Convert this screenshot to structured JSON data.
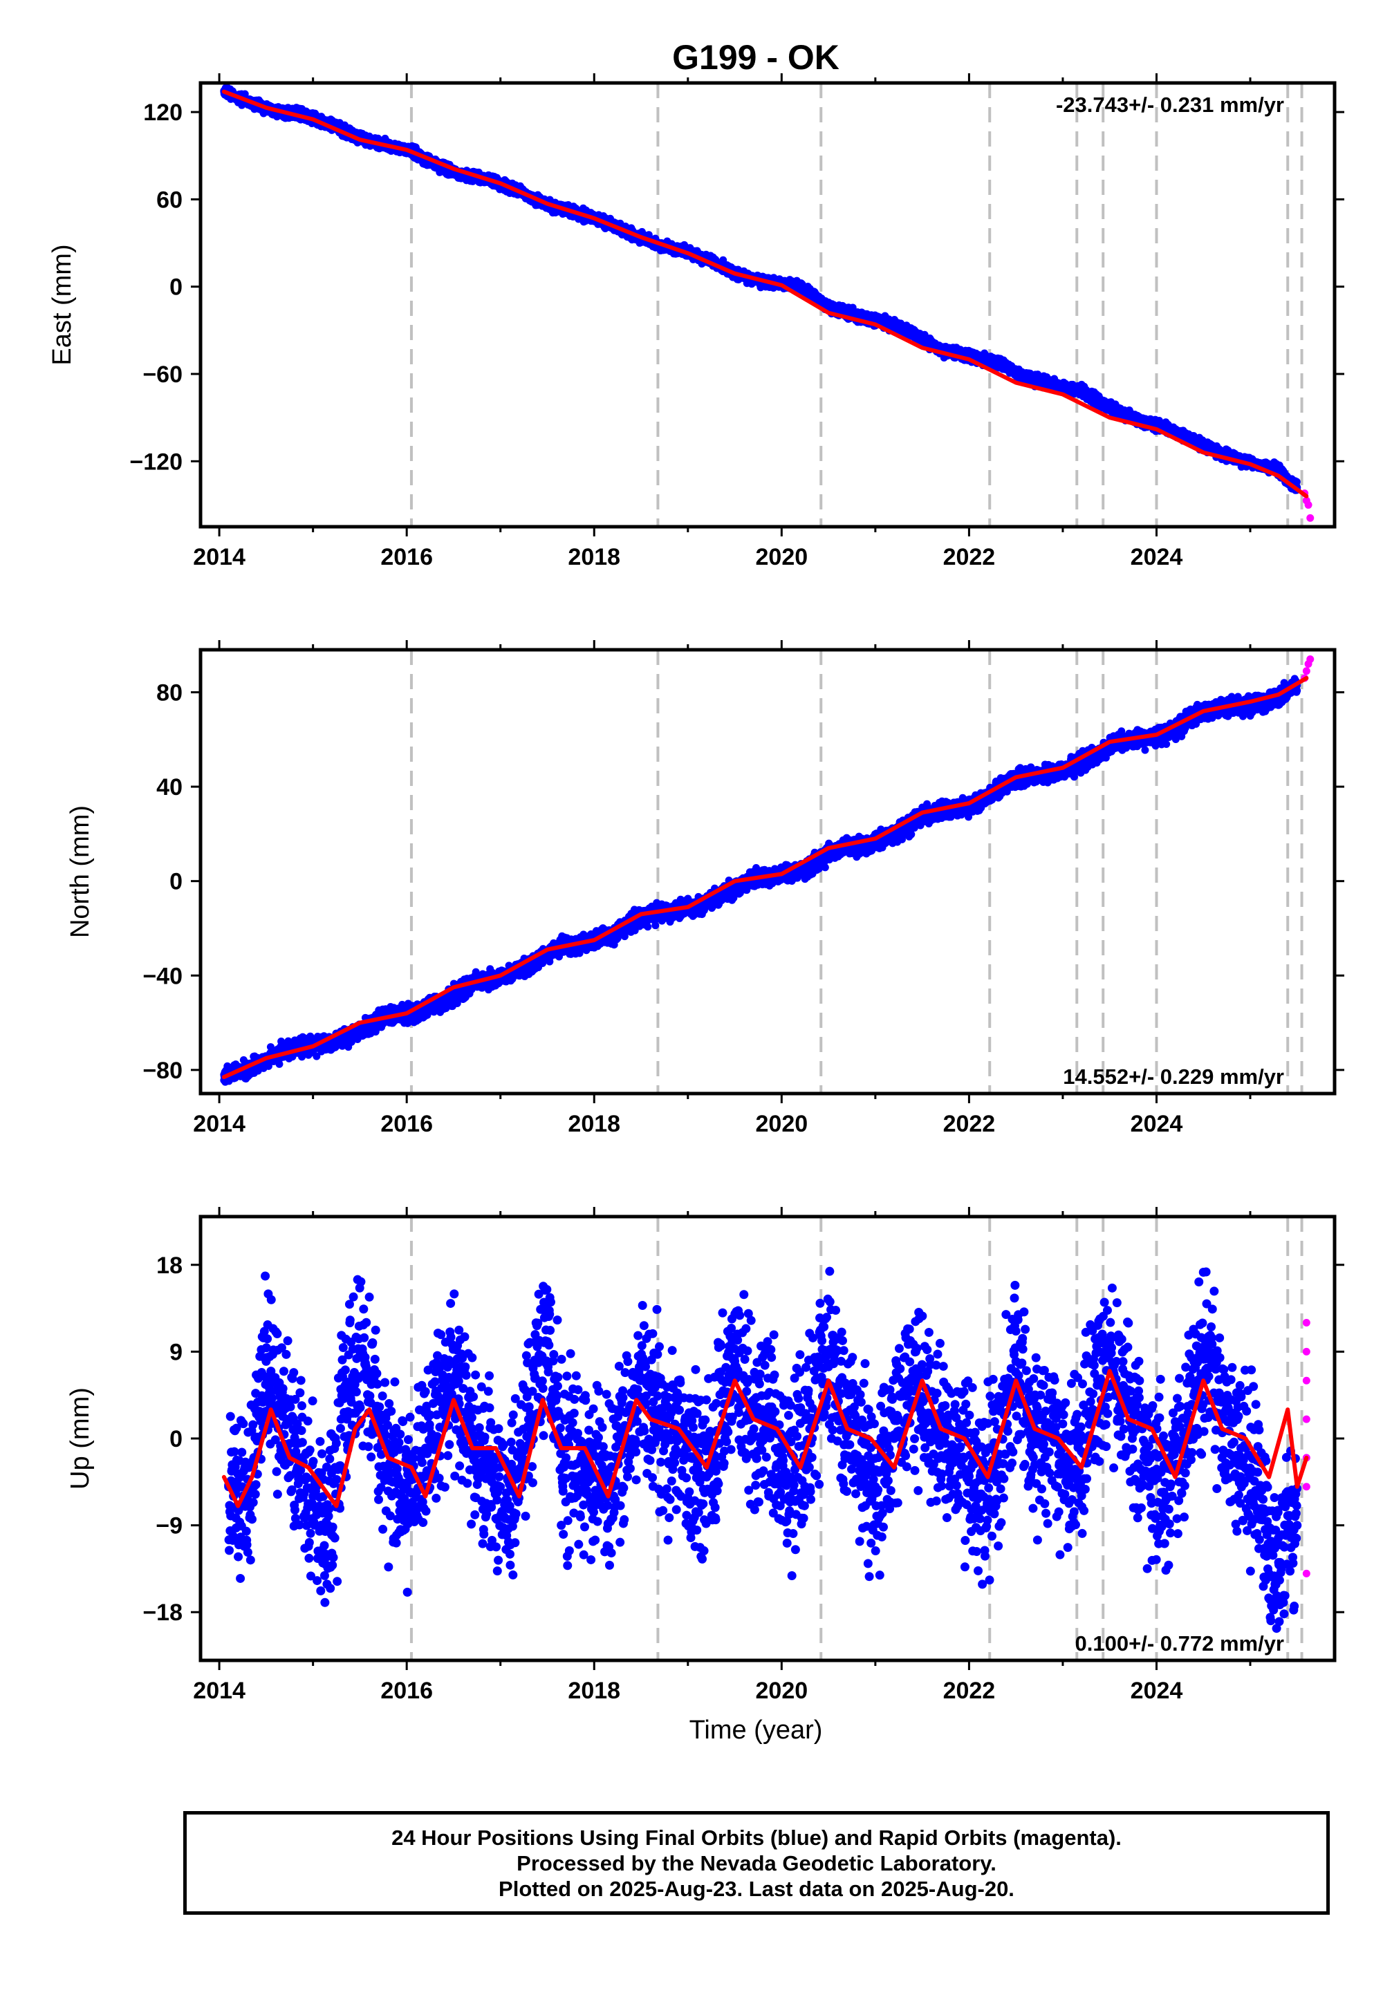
{
  "title": "G199 - OK",
  "xlabel": "Time (year)",
  "colors": {
    "final": "#0000ff",
    "rapid": "#ff00ff",
    "model": "#ff0000",
    "events": "#c0c0c0"
  },
  "chart_data": [
    {
      "type": "scatter",
      "component": "East",
      "ylabel": "East (mm)",
      "rate_label": "-23.743+/- 0.231 mm/yr",
      "rate_position": "top-right",
      "xlim": [
        2013.8,
        2025.9
      ],
      "ylim": [
        -165,
        140
      ],
      "xticks": [
        2014,
        2016,
        2018,
        2020,
        2022,
        2024
      ],
      "xtick_labels": [
        "2014",
        "2016",
        "2018",
        "2020",
        "2022",
        "2024"
      ],
      "yticks": [
        120,
        60,
        0,
        -60,
        -120
      ],
      "ytick_labels": [
        "120",
        "60",
        "0",
        "−60",
        "−120"
      ],
      "event_lines": [
        2016.05,
        2018.68,
        2020.42,
        2022.22,
        2023.15,
        2023.43,
        2024.0,
        2025.4,
        2025.55
      ],
      "series": [
        {
          "name": "Final Orbits (blue)",
          "x": [
            2014.05,
            2014.3,
            2014.6,
            2014.9,
            2015.2,
            2015.5,
            2015.8,
            2016.05,
            2016.3,
            2016.6,
            2016.9,
            2017.2,
            2017.5,
            2017.8,
            2018.1,
            2018.4,
            2018.7,
            2019.0,
            2019.3,
            2019.6,
            2019.9,
            2020.2,
            2020.5,
            2020.8,
            2021.1,
            2021.4,
            2021.7,
            2022.0,
            2022.3,
            2022.6,
            2022.9,
            2023.2,
            2023.5,
            2023.8,
            2024.1,
            2024.4,
            2024.7,
            2025.0,
            2025.3,
            2025.5
          ],
          "y": [
            134,
            127,
            121,
            118,
            111,
            102,
            97,
            93,
            84,
            77,
            73,
            66,
            56,
            51,
            45,
            36,
            28,
            24,
            16,
            6,
            3,
            0,
            -14,
            -20,
            -24,
            -32,
            -44,
            -48,
            -52,
            -62,
            -67,
            -72,
            -83,
            -92,
            -97,
            -106,
            -115,
            -121,
            -126,
            -138
          ]
        },
        {
          "name": "Rapid Orbits (magenta)",
          "x": [
            2025.58,
            2025.6,
            2025.62,
            2025.64
          ],
          "y": [
            -142,
            -147,
            -150,
            -159
          ]
        },
        {
          "name": "Model",
          "x": [
            2014.05,
            2014.5,
            2015.0,
            2015.5,
            2016.0,
            2016.5,
            2017.0,
            2017.5,
            2018.0,
            2018.5,
            2019.0,
            2019.5,
            2020.0,
            2020.5,
            2021.0,
            2021.5,
            2022.0,
            2022.5,
            2023.0,
            2023.5,
            2024.0,
            2024.5,
            2025.0,
            2025.3,
            2025.6
          ],
          "y": [
            134,
            123,
            115,
            101,
            94,
            81,
            71,
            57,
            47,
            34,
            23,
            9,
            1,
            -18,
            -26,
            -42,
            -50,
            -66,
            -74,
            -90,
            -98,
            -114,
            -122,
            -130,
            -144
          ]
        }
      ]
    },
    {
      "type": "scatter",
      "component": "North",
      "ylabel": "North (mm)",
      "rate_label": "14.552+/- 0.229 mm/yr",
      "rate_position": "bottom-right",
      "xlim": [
        2013.8,
        2025.9
      ],
      "ylim": [
        -90,
        98
      ],
      "xticks": [
        2014,
        2016,
        2018,
        2020,
        2022,
        2024
      ],
      "xtick_labels": [
        "2014",
        "2016",
        "2018",
        "2020",
        "2022",
        "2024"
      ],
      "yticks": [
        80,
        40,
        0,
        -40,
        -80
      ],
      "ytick_labels": [
        "80",
        "40",
        "0",
        "−40",
        "−80"
      ],
      "event_lines": [
        2016.05,
        2018.68,
        2020.42,
        2022.22,
        2023.15,
        2023.43,
        2024.0,
        2025.4,
        2025.55
      ],
      "series": [
        {
          "name": "Final Orbits (blue)",
          "x": [
            2014.05,
            2014.3,
            2014.6,
            2014.9,
            2015.2,
            2015.5,
            2015.8,
            2016.1,
            2016.4,
            2016.7,
            2017.0,
            2017.3,
            2017.6,
            2017.9,
            2018.2,
            2018.5,
            2018.8,
            2019.1,
            2019.4,
            2019.7,
            2020.0,
            2020.3,
            2020.6,
            2020.9,
            2021.2,
            2021.5,
            2021.8,
            2022.1,
            2022.4,
            2022.7,
            2023.0,
            2023.3,
            2023.6,
            2023.9,
            2024.2,
            2024.5,
            2024.8,
            2025.1,
            2025.3,
            2025.5
          ],
          "y": [
            -82,
            -80,
            -74,
            -70,
            -69,
            -63,
            -57,
            -56,
            -51,
            -43,
            -41,
            -36,
            -28,
            -26,
            -23,
            -15,
            -13,
            -11,
            -5,
            1,
            2,
            6,
            14,
            15,
            19,
            28,
            30,
            33,
            42,
            45,
            47,
            52,
            59,
            60,
            64,
            72,
            74,
            75,
            78,
            83
          ]
        },
        {
          "name": "Rapid Orbits (magenta)",
          "x": [
            2025.58,
            2025.6,
            2025.62,
            2025.64
          ],
          "y": [
            86,
            89,
            92,
            94
          ]
        },
        {
          "name": "Model",
          "x": [
            2014.05,
            2014.5,
            2015.0,
            2015.5,
            2016.0,
            2016.5,
            2017.0,
            2017.5,
            2018.0,
            2018.5,
            2019.0,
            2019.5,
            2020.0,
            2020.5,
            2021.0,
            2021.5,
            2022.0,
            2022.5,
            2023.0,
            2023.5,
            2024.0,
            2024.5,
            2025.0,
            2025.3,
            2025.6
          ],
          "y": [
            -83,
            -75,
            -70,
            -60,
            -56,
            -45,
            -40,
            -29,
            -25,
            -14,
            -11,
            0,
            3,
            14,
            18,
            29,
            33,
            44,
            48,
            59,
            62,
            72,
            76,
            79,
            86
          ]
        }
      ]
    },
    {
      "type": "scatter",
      "component": "Up",
      "ylabel": "Up (mm)",
      "rate_label": "0.100+/- 0.772 mm/yr",
      "rate_position": "bottom-right",
      "xlim": [
        2013.8,
        2025.9
      ],
      "ylim": [
        -23,
        23
      ],
      "xticks": [
        2014,
        2016,
        2018,
        2020,
        2022,
        2024
      ],
      "xtick_labels": [
        "2014",
        "2016",
        "2018",
        "2020",
        "2022",
        "2024"
      ],
      "yticks": [
        18,
        9,
        0,
        -9,
        -18
      ],
      "ytick_labels": [
        "18",
        "9",
        "0",
        "−9",
        "−18"
      ],
      "event_lines": [
        2016.05,
        2018.68,
        2020.42,
        2022.22,
        2023.15,
        2023.43,
        2024.0,
        2025.4,
        2025.55
      ],
      "series": [
        {
          "name": "Final Orbits (blue)",
          "x": [
            2014.1,
            2014.3,
            2014.5,
            2014.6,
            2014.8,
            2015.0,
            2015.2,
            2015.3,
            2015.5,
            2015.6,
            2015.8,
            2016.0,
            2016.2,
            2016.5,
            2016.7,
            2016.9,
            2017.1,
            2017.3,
            2017.5,
            2017.7,
            2017.9,
            2018.2,
            2018.4,
            2018.5,
            2018.8,
            2019.0,
            2019.2,
            2019.5,
            2019.7,
            2019.9,
            2020.1,
            2020.3,
            2020.5,
            2020.7,
            2021.0,
            2021.2,
            2021.4,
            2021.6,
            2021.9,
            2022.1,
            2022.3,
            2022.5,
            2022.7,
            2022.9,
            2023.1,
            2023.3,
            2023.5,
            2023.7,
            2023.9,
            2024.1,
            2024.3,
            2024.5,
            2024.7,
            2024.9,
            2025.1,
            2025.2,
            2025.3,
            2025.4,
            2025.5
          ],
          "y": [
            -5,
            -7,
            8,
            3,
            -2,
            -6,
            -10,
            2,
            9,
            4,
            -3,
            -8,
            -1,
            6,
            1,
            -4,
            -7,
            2,
            10,
            -2,
            -3,
            -5,
            3,
            6,
            0,
            -1,
            -4,
            8,
            3,
            1,
            -4,
            1,
            9,
            2,
            -5,
            0,
            7,
            2,
            -1,
            -6,
            -2,
            8,
            1,
            0,
            -4,
            2,
            10,
            3,
            -2,
            -6,
            0,
            9,
            2,
            -1,
            -6,
            -14,
            -11,
            -8,
            -9
          ]
        },
        {
          "name": "Rapid Orbits (magenta)",
          "x": [
            2025.6,
            2025.6,
            2025.6,
            2025.6,
            2025.6,
            2025.6,
            2025.6
          ],
          "y": [
            12,
            9,
            6,
            2,
            -2,
            -5,
            -14
          ]
        },
        {
          "name": "Model",
          "x": [
            2014.05,
            2014.2,
            2014.35,
            2014.55,
            2014.75,
            2014.95,
            2015.1,
            2015.25,
            2015.45,
            2015.6,
            2015.8,
            2016.05,
            2016.2,
            2016.5,
            2016.7,
            2016.95,
            2017.2,
            2017.45,
            2017.65,
            2017.9,
            2018.15,
            2018.45,
            2018.6,
            2018.9,
            2019.2,
            2019.5,
            2019.7,
            2019.95,
            2020.2,
            2020.5,
            2020.7,
            2020.95,
            2021.2,
            2021.5,
            2021.7,
            2021.95,
            2022.2,
            2022.5,
            2022.7,
            2022.95,
            2023.2,
            2023.5,
            2023.7,
            2023.95,
            2024.2,
            2024.5,
            2024.7,
            2024.95,
            2025.2,
            2025.4,
            2025.5,
            2025.6
          ],
          "y": [
            -4,
            -7,
            -4,
            3,
            -2,
            -3,
            -5,
            -7,
            1,
            3,
            -2,
            -3,
            -6,
            4,
            -1,
            -1,
            -6,
            4,
            -1,
            -1,
            -6,
            4,
            2,
            1,
            -3,
            6,
            2,
            1,
            -3,
            6,
            1,
            0,
            -3,
            6,
            1,
            0,
            -4,
            6,
            1,
            0,
            -3,
            7,
            2,
            1,
            -4,
            6,
            1,
            0,
            -4,
            3,
            -5,
            -2
          ]
        }
      ]
    }
  ],
  "footer": {
    "line1": "24 Hour Positions Using Final Orbits (blue) and Rapid Orbits (magenta).",
    "line2": "Processed by the Nevada Geodetic Laboratory.",
    "line3": "Plotted on 2025-Aug-23. Last data on 2025-Aug-20."
  }
}
